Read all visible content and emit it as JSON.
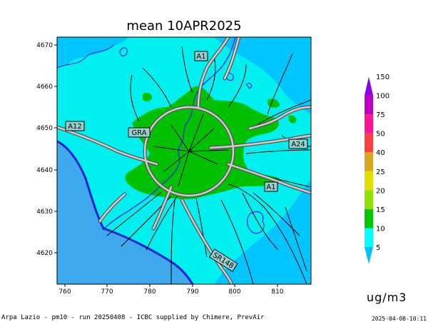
{
  "title": "mean 10APR2025",
  "unit": "ug/m3",
  "credits": "Arpa Lazio - pm10 - run 20250408 - ICBC supplied by Chimere, PrevAir",
  "timestamp": "2025-04-08-10:11",
  "map": {
    "x_ticks": [
      "760",
      "770",
      "780",
      "790",
      "800",
      "810"
    ],
    "y_ticks": [
      "4670",
      "4660",
      "4650",
      "4640",
      "4630",
      "4620"
    ],
    "road_labels": [
      "A1",
      "A12",
      "GRA",
      "A24",
      "A1",
      "SR148"
    ],
    "colors": {
      "sea": "#3fa9ee",
      "land_low": "#00c5ff",
      "land_mid": "#00f0f0",
      "urban": "#00c000",
      "coast": "#2020d8",
      "lakes": "#3333cc"
    }
  },
  "colorbar": {
    "levels": [
      "5",
      "10",
      "15",
      "20",
      "25",
      "40",
      "50",
      "75",
      "100",
      "150"
    ],
    "colors": [
      "#00bfff",
      "#00ffff",
      "#00c800",
      "#90e000",
      "#e0e000",
      "#daa520",
      "#ff4040",
      "#ff1493",
      "#c000c0",
      "#8a00e6"
    ]
  }
}
